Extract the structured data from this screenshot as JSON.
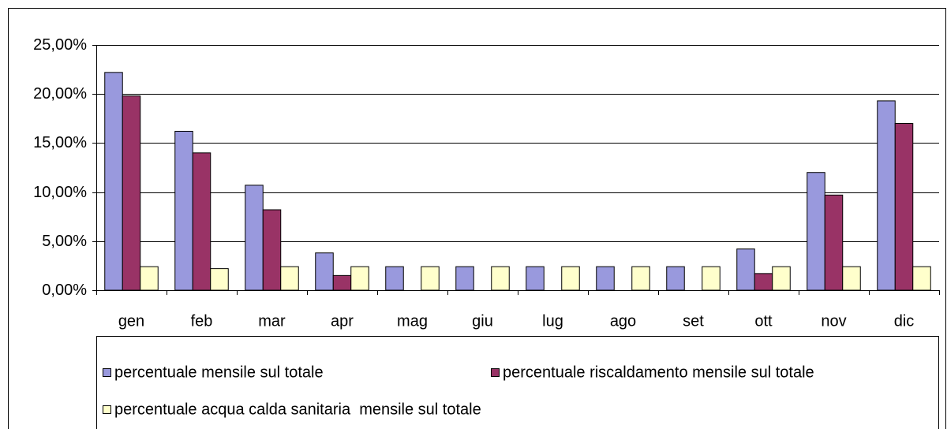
{
  "chart_data": {
    "type": "bar",
    "categories": [
      "gen",
      "feb",
      "mar",
      "apr",
      "mag",
      "giu",
      "lug",
      "ago",
      "set",
      "ott",
      "nov",
      "dic"
    ],
    "series": [
      {
        "name": "percentuale mensile sul totale",
        "color": "#9999dd",
        "values": [
          22.2,
          16.2,
          10.7,
          3.8,
          2.4,
          2.4,
          2.4,
          2.4,
          2.4,
          4.2,
          12.0,
          19.3
        ]
      },
      {
        "name": "percentuale riscaldamento mensile sul totale",
        "color": "#993366",
        "values": [
          19.8,
          14.0,
          8.2,
          1.5,
          0,
          0,
          0,
          0,
          0,
          1.7,
          9.7,
          17.0
        ]
      },
      {
        "name": "percentuale acqua calda sanitaria  mensile sul totale",
        "color": "#ffffcc",
        "values": [
          2.4,
          2.2,
          2.4,
          2.4,
          2.4,
          2.4,
          2.4,
          2.4,
          2.4,
          2.4,
          2.4,
          2.4
        ]
      }
    ],
    "ylim": [
      0,
      25
    ],
    "yticks": [
      {
        "value": 0,
        "label": "0,00%"
      },
      {
        "value": 5,
        "label": "5,00%"
      },
      {
        "value": 10,
        "label": "10,00%"
      },
      {
        "value": 15,
        "label": "15,00%"
      },
      {
        "value": 20,
        "label": "20,00%"
      },
      {
        "value": 25,
        "label": "25,00%"
      }
    ],
    "grid": true,
    "legend": "bottom"
  }
}
